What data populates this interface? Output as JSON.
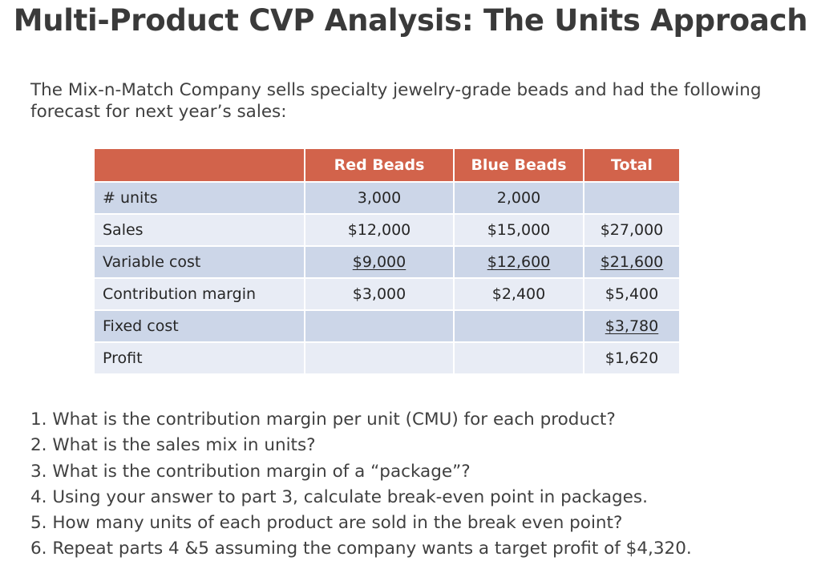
{
  "title": "Multi-Product CVP Analysis: The Units Approach",
  "intro": "The Mix-n-Match Company sells specialty jewelry-grade beads and had the following forecast for next year’s sales:",
  "table": {
    "headers": [
      "",
      "Red Beads",
      "Blue Beads",
      "Total"
    ],
    "rows": [
      {
        "label": "# units",
        "red": "3,000",
        "blue": "2,000",
        "total": ""
      },
      {
        "label": "Sales",
        "red": "$12,000",
        "blue": "$15,000",
        "total": "$27,000"
      },
      {
        "label": "Variable cost",
        "red": "$9,000",
        "blue": "$12,600",
        "total": "$21,600"
      },
      {
        "label": "Contribution margin",
        "red": "$3,000",
        "blue": "$2,400",
        "total": "$5,400"
      },
      {
        "label": "Fixed cost",
        "red": "",
        "blue": "",
        "total": "$3,780"
      },
      {
        "label": "Profit",
        "red": "",
        "blue": "",
        "total": "$1,620"
      }
    ]
  },
  "questions": [
    "1. What is the contribution margin per unit (CMU) for each product?",
    "2. What is the sales mix in units?",
    "3. What is the contribution margin of a “package”?",
    "4. Using your answer to part 3, calculate break-even point in packages.",
    "5. How many units of each product are sold in the break even point?",
    "6. Repeat parts 4 &5  assuming the company wants a target profit of $4,320."
  ]
}
